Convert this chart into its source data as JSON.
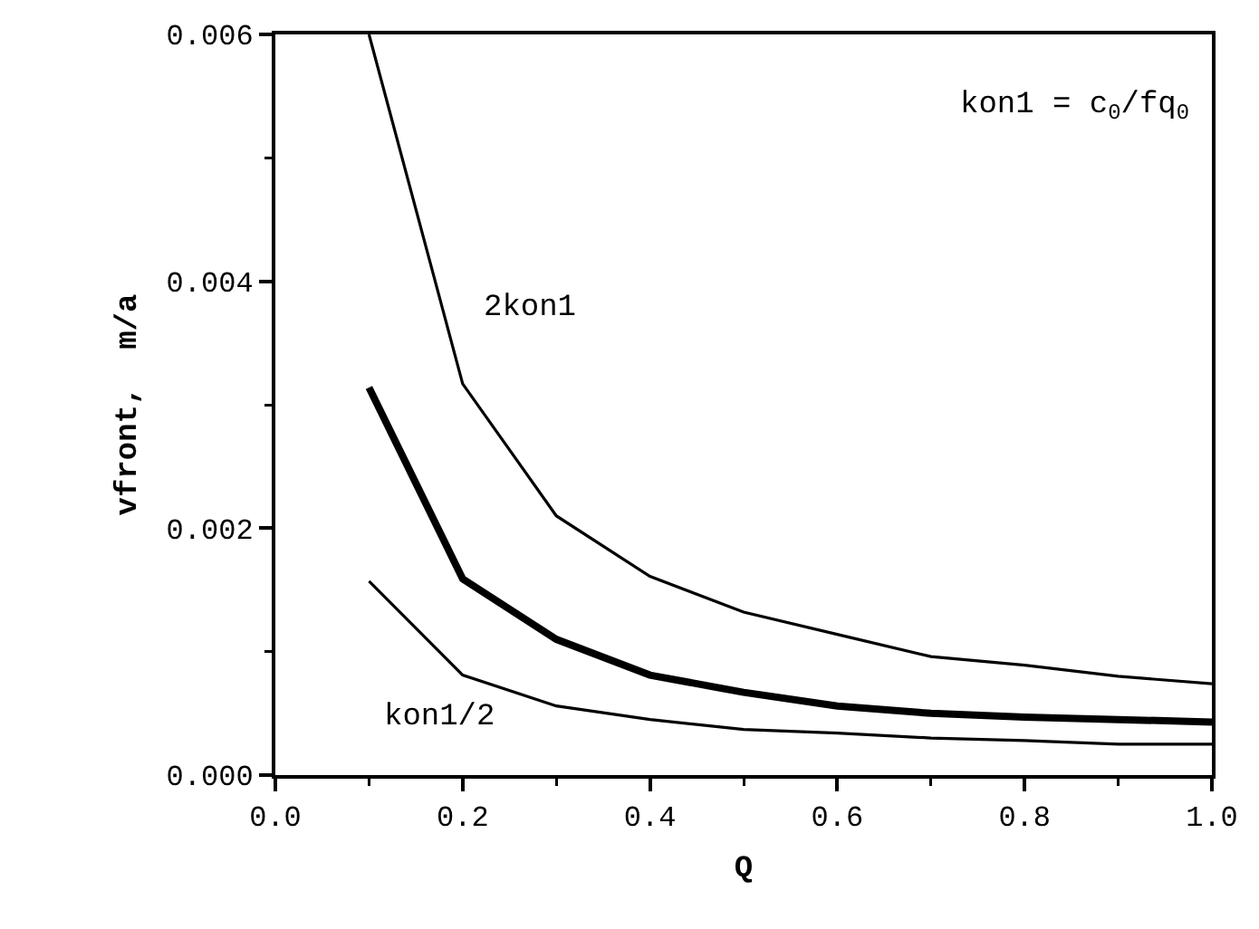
{
  "chart_data": {
    "type": "line",
    "xlabel": "Q",
    "ylabel": "vfront,  m/a",
    "x": [
      0.1,
      0.2,
      0.3,
      0.4,
      0.5,
      0.6,
      0.7,
      0.8,
      0.9,
      1.0
    ],
    "series": [
      {
        "name": "2kon1",
        "color": "#000000",
        "values": [
          0.006,
          0.00317,
          0.0021,
          0.00161,
          0.00132,
          0.00114,
          0.00096,
          0.00089,
          0.0008,
          0.00074
        ]
      },
      {
        "color": "#000000",
        "values": [
          0.00314,
          0.00159,
          0.0011,
          0.00081,
          0.00067,
          0.00056,
          0.0005,
          0.00047,
          0.00045,
          0.00043
        ]
      },
      {
        "name": "kon1/2",
        "color": "#000000",
        "values": [
          0.00157,
          0.00081,
          0.00056,
          0.00045,
          0.00037,
          0.00034,
          0.0003,
          0.00028,
          0.00025,
          0.00025
        ]
      }
    ],
    "xlim": [
      0,
      1
    ],
    "ylim": [
      0,
      0.006
    ],
    "xticks": [
      {
        "value": 0,
        "label": "0.0"
      },
      {
        "value": 0.2,
        "label": "0.2"
      },
      {
        "value": 0.4,
        "label": "0.4"
      },
      {
        "value": 0.6,
        "label": "0.6"
      },
      {
        "value": 0.8,
        "label": "0.8"
      },
      {
        "value": 1,
        "label": "1.0"
      }
    ],
    "yticks": [
      {
        "value": 0,
        "label": "0.000"
      },
      {
        "value": 0.002,
        "label": "0.002"
      },
      {
        "value": 0.004,
        "label": "0.004"
      },
      {
        "value": 0.006,
        "label": "0.006"
      }
    ],
    "annotations": [
      "kon1 = c$_{0}$/fq$_{0}$"
    ],
    "grid": false,
    "legend": false,
    "marker": "none",
    "line_style": "solid"
  }
}
